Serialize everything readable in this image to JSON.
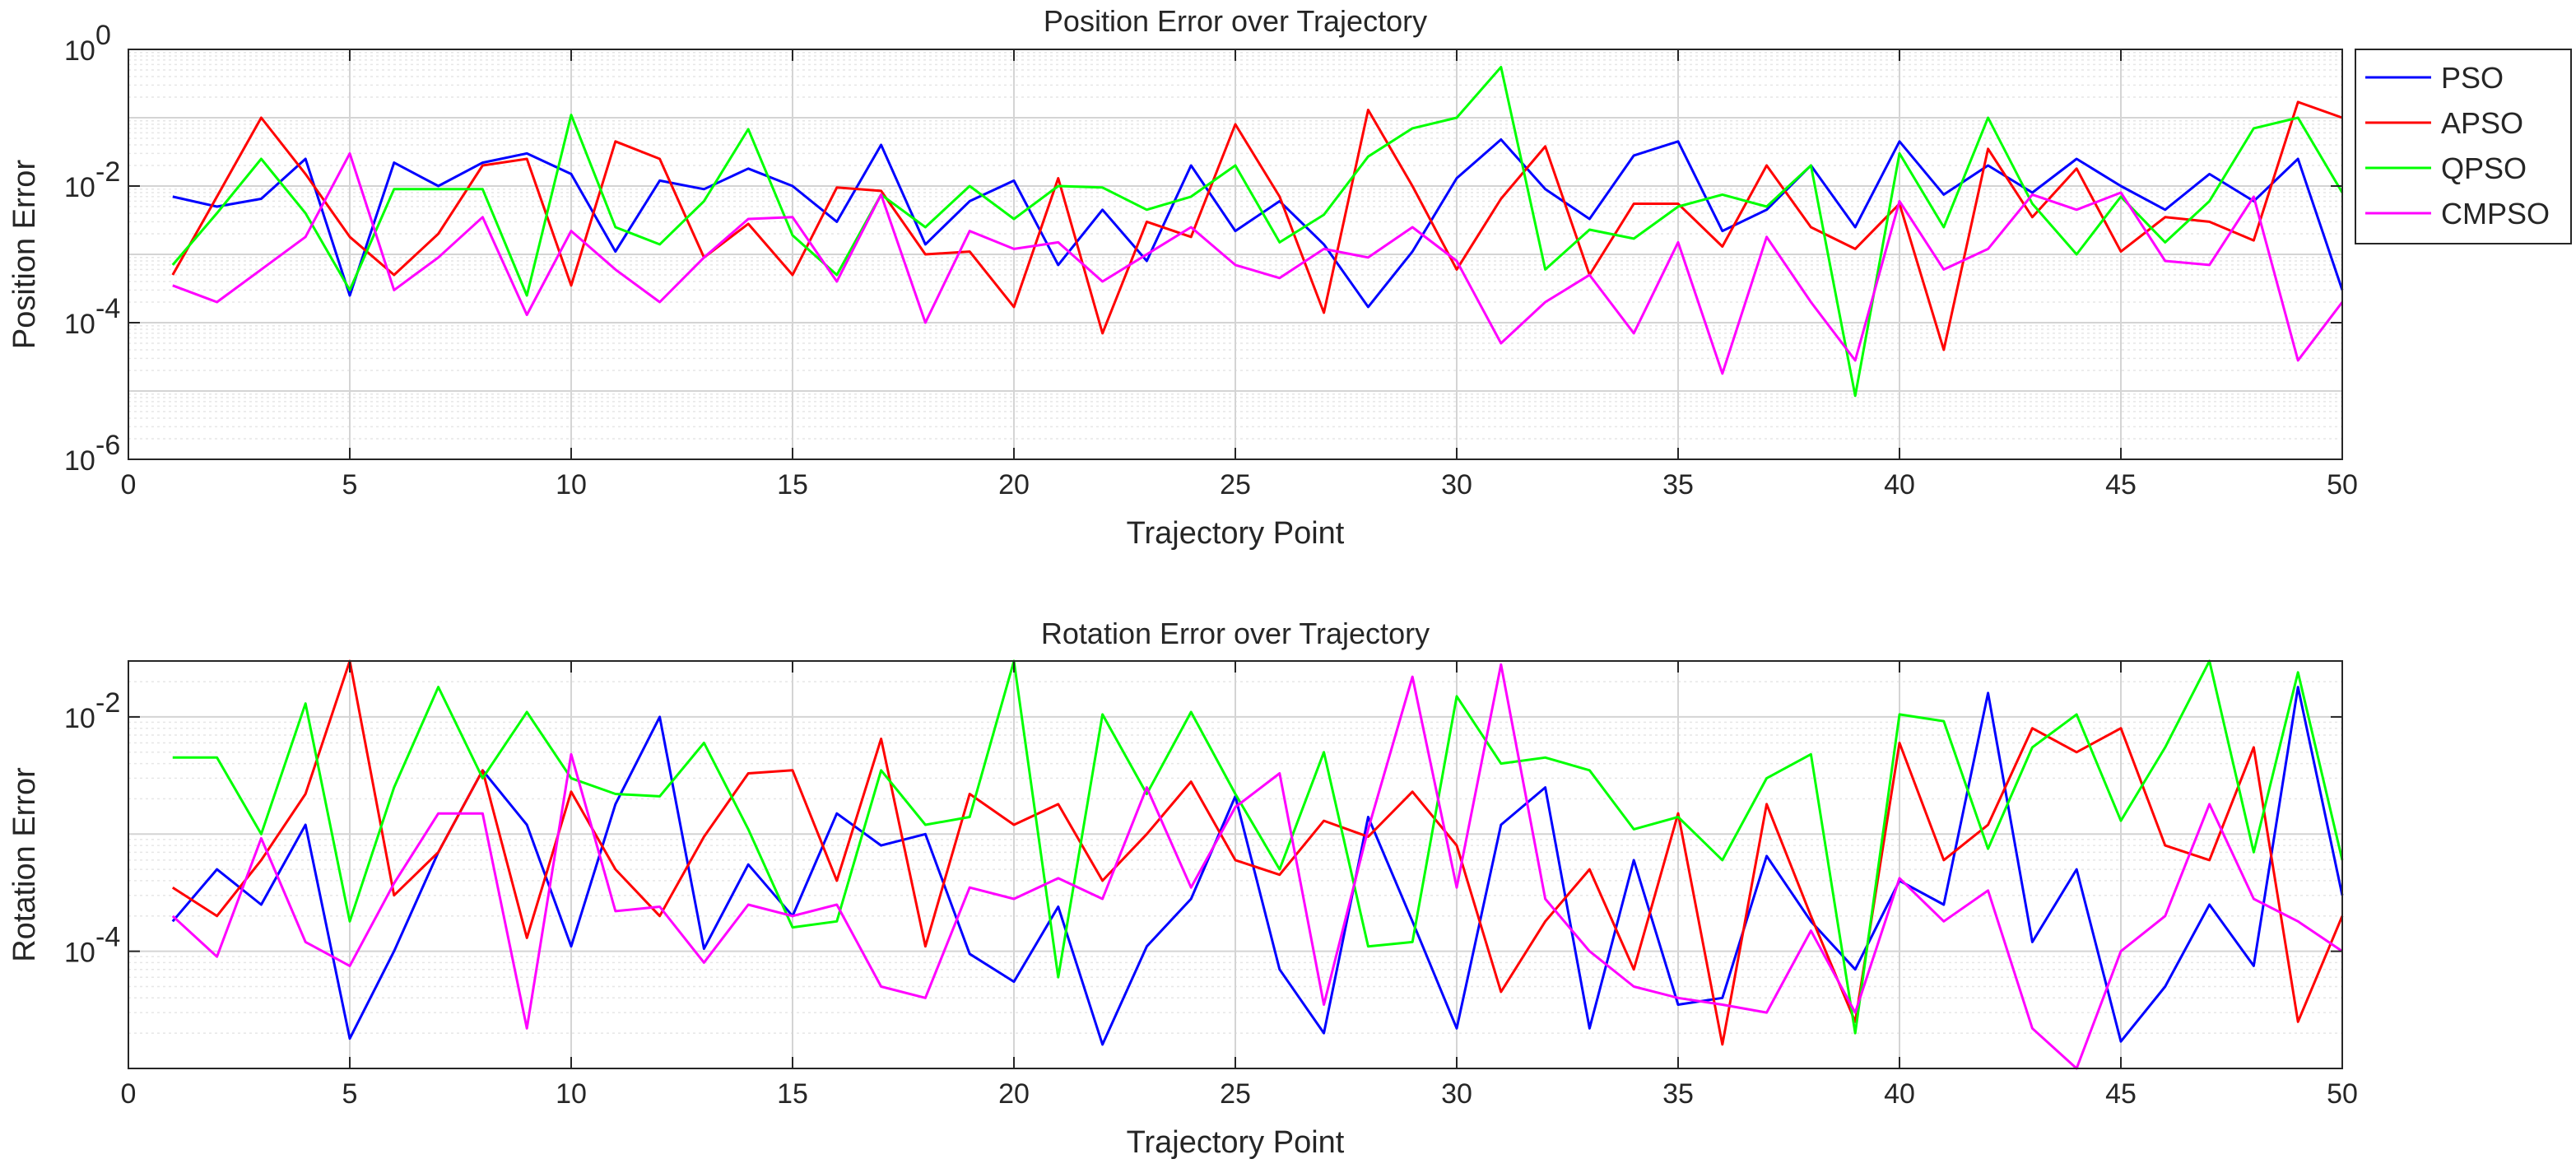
{
  "chart_data": [
    {
      "type": "line",
      "title": "Position Error over Trajectory",
      "xlabel": "Trajectory Point",
      "ylabel": "Position Error",
      "xlim": [
        0,
        50
      ],
      "ylim": [
        1e-06,
        1
      ],
      "yscale": "log",
      "grid": true,
      "x_ticks": [
        0,
        5,
        10,
        15,
        20,
        25,
        30,
        35,
        40,
        45,
        50
      ],
      "y_ticks": [
        {
          "value": 1e-06,
          "base": "10",
          "exp": "-6"
        },
        {
          "value": 0.0001,
          "base": "10",
          "exp": "-4"
        },
        {
          "value": 0.01,
          "base": "10",
          "exp": "-2"
        },
        {
          "value": 1,
          "base": "10",
          "exp": "0"
        }
      ],
      "legend": "outside-top-right",
      "x": [
        1,
        2,
        3,
        4,
        5,
        6,
        7,
        8,
        9,
        10,
        11,
        12,
        13,
        14,
        15,
        16,
        17,
        18,
        19,
        20,
        21,
        22,
        23,
        24,
        25,
        26,
        27,
        28,
        29,
        30,
        31,
        32,
        33,
        34,
        35,
        36,
        37,
        38,
        39,
        40,
        41,
        42,
        43,
        44,
        45,
        46,
        47,
        48,
        49,
        50
      ],
      "series": [
        {
          "name": "PSO",
          "color": "#0000ff",
          "values": [
            0.007,
            0.005,
            0.0065,
            0.025,
            0.00025,
            0.022,
            0.01,
            0.022,
            0.03,
            0.015,
            0.0011,
            0.012,
            0.009,
            0.018,
            0.01,
            0.003,
            0.04,
            0.0014,
            0.006,
            0.012,
            0.0007,
            0.0045,
            0.0008,
            0.02,
            0.0022,
            0.006,
            0.0014,
            0.00017,
            0.0011,
            0.013,
            0.048,
            0.009,
            0.0033,
            0.028,
            0.045,
            0.0022,
            0.0045,
            0.02,
            0.0025,
            0.045,
            0.0075,
            0.02,
            0.008,
            0.025,
            0.01,
            0.0045,
            0.015,
            0.006,
            0.025,
            0.0003
          ]
        },
        {
          "name": "APSO",
          "color": "#ff0000",
          "values": [
            0.0005,
            0.007,
            0.1,
            0.015,
            0.0018,
            0.0005,
            0.002,
            0.02,
            0.025,
            0.00035,
            0.045,
            0.025,
            0.0009,
            0.0028,
            0.0005,
            0.0095,
            0.0085,
            0.001,
            0.0011,
            0.00017,
            0.013,
            7e-05,
            0.003,
            0.0018,
            0.08,
            0.007,
            0.00014,
            0.13,
            0.01,
            0.0006,
            0.0065,
            0.038,
            0.0005,
            0.0055,
            0.0055,
            0.0013,
            0.02,
            0.0025,
            0.0012,
            0.0055,
            4e-05,
            0.035,
            0.0035,
            0.018,
            0.0011,
            0.0035,
            0.003,
            0.0016,
            0.17,
            0.1
          ]
        },
        {
          "name": "QPSO",
          "color": "#00ff00",
          "values": [
            0.0007,
            0.004,
            0.025,
            0.004,
            0.0003,
            0.009,
            0.009,
            0.009,
            0.00025,
            0.11,
            0.0025,
            0.0014,
            0.006,
            0.068,
            0.0019,
            0.0005,
            0.0075,
            0.0025,
            0.01,
            0.0033,
            0.01,
            0.0095,
            0.0045,
            0.007,
            0.02,
            0.0015,
            0.0038,
            0.027,
            0.07,
            0.1,
            0.55,
            0.0006,
            0.0023,
            0.0017,
            0.005,
            0.0075,
            0.005,
            0.02,
            8.5e-06,
            0.03,
            0.0025,
            0.1,
            0.0055,
            0.001,
            0.007,
            0.0015,
            0.006,
            0.07,
            0.1,
            0.008
          ]
        },
        {
          "name": "CMPSO",
          "color": "#ff00ff",
          "values": [
            0.00035,
            0.0002,
            0.0006,
            0.0018,
            0.03,
            0.0003,
            0.0009,
            0.0035,
            0.00013,
            0.0022,
            0.0006,
            0.0002,
            0.0009,
            0.0033,
            0.0035,
            0.0004,
            0.0075,
            0.0001,
            0.0022,
            0.0012,
            0.0015,
            0.0004,
            0.001,
            0.0025,
            0.0007,
            0.00045,
            0.0012,
            0.0009,
            0.0025,
            0.0008,
            5e-05,
            0.0002,
            0.0005,
            7e-05,
            0.0015,
            1.8e-05,
            0.0018,
            0.0002,
            2.8e-05,
            0.006,
            0.0006,
            0.0012,
            0.0075,
            0.0045,
            0.008,
            0.0008,
            0.0007,
            0.007,
            2.8e-05,
            0.0002
          ]
        }
      ]
    },
    {
      "type": "line",
      "title": "Rotation Error over Trajectory",
      "xlabel": "Trajectory Point",
      "ylabel": "Rotation Error",
      "xlim": [
        0,
        50
      ],
      "ylim": [
        1e-05,
        0.03
      ],
      "yscale": "log",
      "grid": true,
      "x_ticks": [
        0,
        5,
        10,
        15,
        20,
        25,
        30,
        35,
        40,
        45,
        50
      ],
      "y_ticks": [
        {
          "value": 0.0001,
          "base": "10",
          "exp": "-4"
        },
        {
          "value": 0.01,
          "base": "10",
          "exp": "-2"
        }
      ],
      "x": [
        1,
        2,
        3,
        4,
        5,
        6,
        7,
        8,
        9,
        10,
        11,
        12,
        13,
        14,
        15,
        16,
        17,
        18,
        19,
        20,
        21,
        22,
        23,
        24,
        25,
        26,
        27,
        28,
        29,
        30,
        31,
        32,
        33,
        34,
        35,
        36,
        37,
        38,
        39,
        40,
        41,
        42,
        43,
        44,
        45,
        46,
        47,
        48,
        49,
        50
      ],
      "series": [
        {
          "name": "PSO",
          "color": "#0000ff",
          "values": [
            0.00018,
            0.0005,
            0.00025,
            0.0012,
            1.8e-05,
            0.0001,
            0.0007,
            0.0035,
            0.0012,
            0.00011,
            0.0018,
            0.01,
            0.000105,
            0.00055,
            0.0002,
            0.0015,
            0.0008,
            0.001,
            9.5e-05,
            5.5e-05,
            0.00024,
            1.6e-05,
            0.00011,
            0.00028,
            0.0021,
            7e-05,
            2e-05,
            0.0014,
            0.00018,
            2.2e-05,
            0.0012,
            0.0025,
            2.2e-05,
            0.0006,
            3.5e-05,
            4e-05,
            0.00065,
            0.00018,
            7e-05,
            0.0004,
            0.00025,
            0.016,
            0.00012,
            0.0005,
            1.7e-05,
            5e-05,
            0.00025,
            7.5e-05,
            0.018,
            0.0003
          ]
        },
        {
          "name": "APSO",
          "color": "#ff0000",
          "values": [
            0.00035,
            0.0002,
            0.0006,
            0.0022,
            0.03,
            0.0003,
            0.0007,
            0.0035,
            0.00013,
            0.0023,
            0.0005,
            0.0002,
            0.00095,
            0.0033,
            0.0035,
            0.0004,
            0.0065,
            0.00011,
            0.0022,
            0.0012,
            0.0018,
            0.0004,
            0.001,
            0.0028,
            0.0006,
            0.00045,
            0.0013,
            0.00095,
            0.0023,
            0.0008,
            4.5e-05,
            0.00018,
            0.0005,
            7e-05,
            0.0015,
            1.6e-05,
            0.0018,
            0.0002,
            2.5e-05,
            0.006,
            0.0006,
            0.0012,
            0.008,
            0.005,
            0.008,
            0.0008,
            0.0006,
            0.0055,
            2.5e-05,
            0.0002
          ]
        },
        {
          "name": "QPSO",
          "color": "#00ff00",
          "values": [
            0.0045,
            0.0045,
            0.001,
            0.013,
            0.00018,
            0.0025,
            0.018,
            0.003,
            0.011,
            0.003,
            0.0022,
            0.0021,
            0.006,
            0.0011,
            0.00016,
            0.00018,
            0.0035,
            0.0012,
            0.0014,
            0.03,
            6e-05,
            0.0105,
            0.0022,
            0.011,
            0.0022,
            0.0005,
            0.005,
            0.00011,
            0.00012,
            0.015,
            0.004,
            0.0045,
            0.0035,
            0.0011,
            0.0014,
            0.0006,
            0.003,
            0.0048,
            2e-05,
            0.0105,
            0.0092,
            0.00075,
            0.0055,
            0.0105,
            0.0013,
            0.0055,
            0.033,
            0.0007,
            0.024,
            0.0006
          ]
        },
        {
          "name": "CMPSO",
          "color": "#ff00ff",
          "values": [
            0.0002,
            9e-05,
            0.00092,
            0.00012,
            7.5e-05,
            0.00038,
            0.0015,
            0.0015,
            2.2e-05,
            0.0048,
            0.00022,
            0.00024,
            8e-05,
            0.00025,
            0.0002,
            0.00025,
            5e-05,
            4e-05,
            0.00035,
            0.00028,
            0.00042,
            0.00028,
            0.0025,
            0.00035,
            0.0017,
            0.0033,
            3.5e-05,
            0.0011,
            0.022,
            0.00035,
            0.028,
            0.00028,
            0.0001,
            5e-05,
            4e-05,
            3.5e-05,
            3e-05,
            0.00015,
            3e-05,
            0.00042,
            0.00018,
            0.00033,
            2.2e-05,
            7.5e-06,
            0.0001,
            0.0002,
            0.0018,
            0.00028,
            0.00018,
            0.0001
          ]
        }
      ]
    }
  ]
}
